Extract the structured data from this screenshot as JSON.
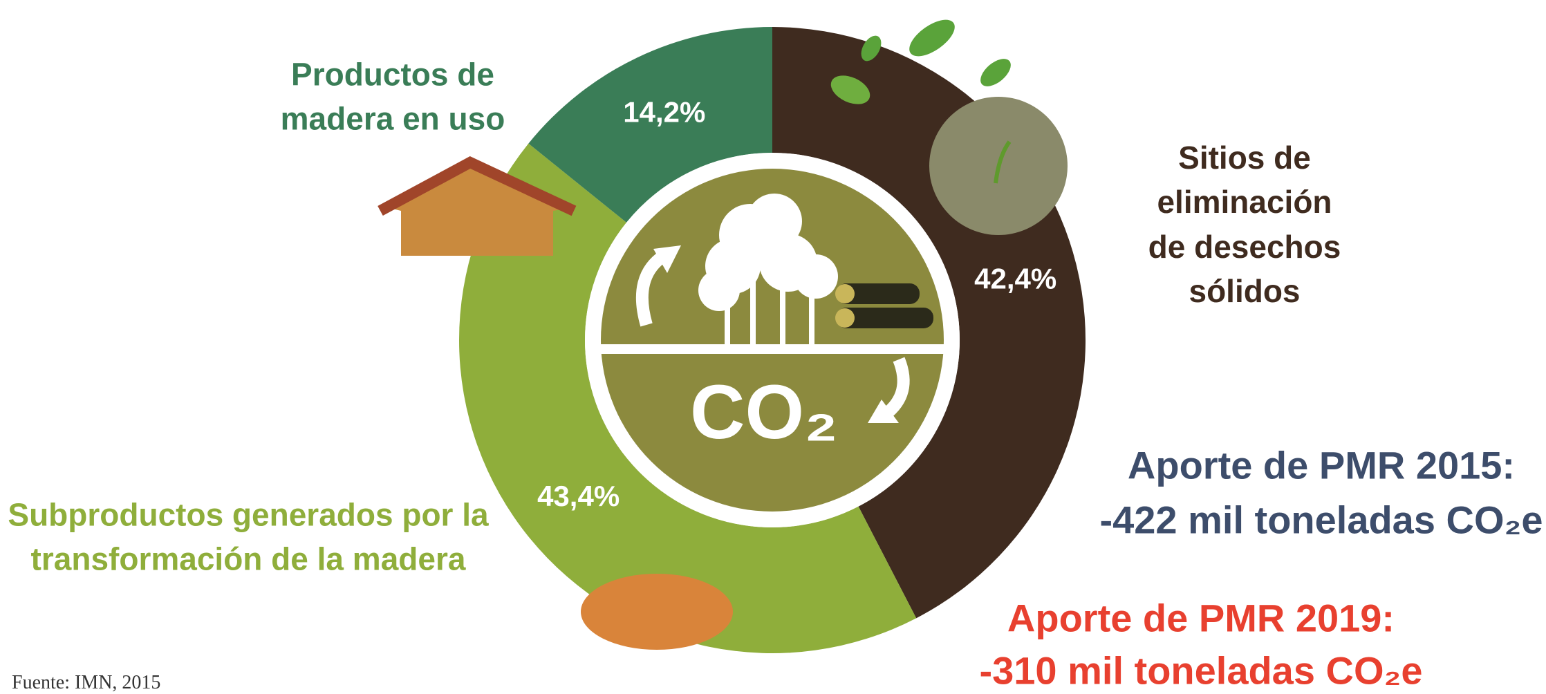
{
  "chart_data": {
    "type": "pie",
    "categories": [
      "Sitios de eliminación\nde desechos sólidos",
      "Subproductos generados por la\ntransformación de la madera",
      "Productos de\nmadera en uso"
    ],
    "values": [
      42.4,
      43.4,
      14.2
    ],
    "value_labels": [
      "42,4%",
      "43,4%",
      "14,2%"
    ],
    "colors": [
      "#3f2b1f",
      "#8fae3b",
      "#3a7d57"
    ],
    "label_colors": [
      "#3f2b1f",
      "#8fae3b",
      "#3a7d57"
    ],
    "center_text": "CO₂",
    "annotations": [
      {
        "lines": [
          "Aporte de PMR 2015:",
          "-422 mil toneladas CO₂e"
        ],
        "color": "#3d4d6b"
      },
      {
        "lines": [
          "Aporte de PMR 2019:",
          "-310 mil toneladas CO₂e"
        ],
        "color": "#e8402f"
      }
    ],
    "source": "Fuente: IMN, 2015"
  }
}
